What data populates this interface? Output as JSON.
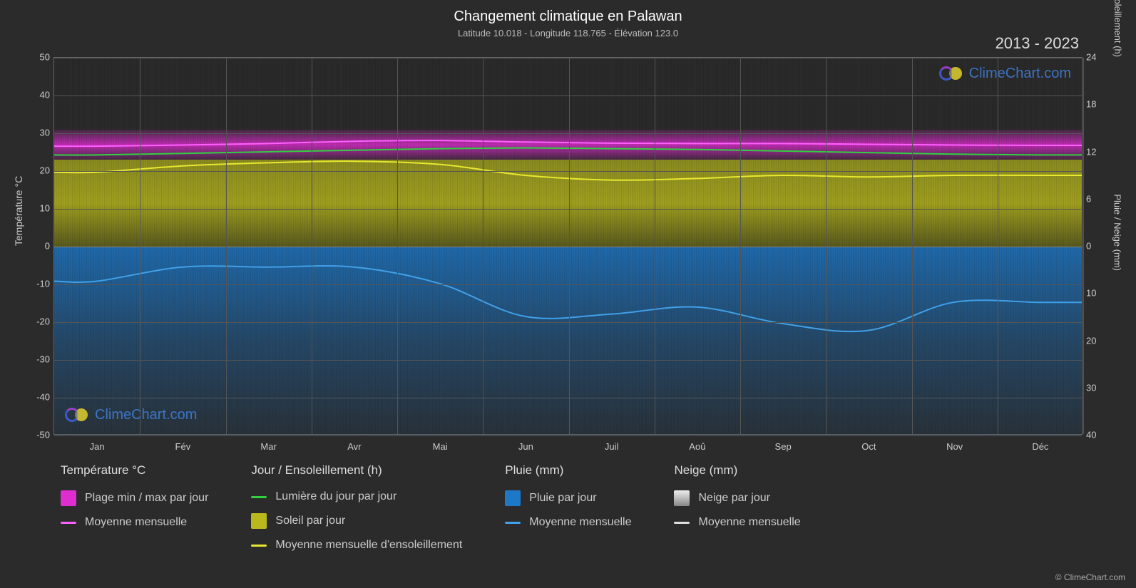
{
  "title": "Changement climatique en Palawan",
  "subtitle": "Latitude 10.018 - Longitude 118.765 - Élévation 123.0",
  "year_range": "2013 - 2023",
  "axes": {
    "left_label": "Température °C",
    "right_label_top": "Jour / Ensoleillement (h)",
    "right_label_bottom": "Pluie / Neige (mm)",
    "temp_min": -50,
    "temp_max": 50,
    "temp_ticks": [
      -50,
      -40,
      -30,
      -20,
      -10,
      0,
      10,
      20,
      30,
      40,
      50
    ],
    "hours_ticks": [
      0,
      6,
      12,
      18,
      24
    ],
    "precip_ticks": [
      0,
      10,
      20,
      30,
      40
    ],
    "months": [
      "Jan",
      "Fév",
      "Mar",
      "Avr",
      "Mai",
      "Jun",
      "Juil",
      "Aoû",
      "Sep",
      "Oct",
      "Nov",
      "Déc"
    ]
  },
  "colors": {
    "background": "#2b2b2b",
    "grid": "#555555",
    "text": "#cccccc",
    "temp_range": "#e02dd0",
    "temp_avg": "#ff60ff",
    "daylight": "#30d040",
    "sun": "#b9b91e",
    "sun_avg": "#e8e830",
    "rain": "#1e78c8",
    "rain_avg": "#40a0e8",
    "snow": "#cccccc",
    "snow_avg": "#dddddd"
  },
  "series": {
    "temp_avg_c": [
      26.5,
      26.8,
      27.2,
      27.8,
      28.0,
      27.6,
      27.3,
      27.2,
      27.2,
      27.0,
      26.8,
      26.7
    ],
    "temp_band_low": [
      23.5,
      23.8,
      24.2,
      24.8,
      25.0,
      24.6,
      24.3,
      24.2,
      24.2,
      24.0,
      23.8,
      23.7
    ],
    "temp_band_high": [
      29.5,
      29.8,
      30.2,
      30.8,
      31.0,
      30.6,
      30.3,
      30.2,
      30.2,
      30.0,
      29.8,
      29.7
    ],
    "daylight_h": [
      11.6,
      11.8,
      12.0,
      12.2,
      12.4,
      12.5,
      12.4,
      12.3,
      12.1,
      11.9,
      11.7,
      11.6
    ],
    "sun_avg_h": [
      9.4,
      10.2,
      10.6,
      10.8,
      10.4,
      9.0,
      8.4,
      8.6,
      9.0,
      8.8,
      9.0,
      9.0
    ],
    "rain_avg_mm": [
      7.5,
      4.5,
      4.5,
      4.5,
      8.0,
      15.0,
      14.5,
      13.0,
      16.5,
      18.0,
      12.0,
      12.0
    ]
  },
  "legend": {
    "temp_header": "Température °C",
    "temp_range": "Plage min / max par jour",
    "temp_avg": "Moyenne mensuelle",
    "day_header": "Jour / Ensoleillement (h)",
    "daylight": "Lumière du jour par jour",
    "sun": "Soleil par jour",
    "sun_avg": "Moyenne mensuelle d'ensoleillement",
    "rain_header": "Pluie (mm)",
    "rain_day": "Pluie par jour",
    "rain_avg": "Moyenne mensuelle",
    "snow_header": "Neige (mm)",
    "snow_day": "Neige par jour",
    "snow_avg": "Moyenne mensuelle"
  },
  "watermark_text": "ClimeChart.com",
  "copyright": "© ClimeChart.com"
}
